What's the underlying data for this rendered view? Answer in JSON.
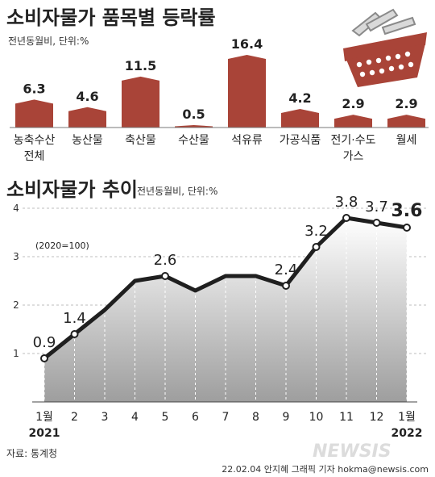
{
  "colors": {
    "bar": "#A94438",
    "bar_dark": "#8A3128",
    "line": "#1f1f1f",
    "grid": "#bdbdbd",
    "text": "#222222",
    "basket": "#A94438"
  },
  "top_section": {
    "title": "소비자물가 품목별 등락률",
    "unit_note": "전년동월비, 단위:%"
  },
  "bottom_section": {
    "title": "소비자물가 추이",
    "unit_note": "전년동월비, 단위:%",
    "base_note": "(2020=100)"
  },
  "chart_data": [
    {
      "type": "bar",
      "title": "소비자물가 품목별 등락률",
      "subtitle": "전년동월비, 단위:%",
      "categories": [
        "농축수산\n전체",
        "농산물",
        "축산물",
        "수산물",
        "석유류",
        "가공식품",
        "전기·수도\n가스",
        "월세"
      ],
      "category_lines": [
        [
          "농축수산",
          "전체"
        ],
        [
          "농산물"
        ],
        [
          "축산물"
        ],
        [
          "수산물"
        ],
        [
          "석유류"
        ],
        [
          "가공식품"
        ],
        [
          "전기·수도",
          "가스"
        ],
        [
          "월세"
        ]
      ],
      "values": [
        6.3,
        4.6,
        11.5,
        0.5,
        16.4,
        4.2,
        2.9,
        2.9
      ],
      "value_labels": [
        "6.3",
        "4.6",
        "11.5",
        "0.5",
        "16.4",
        "4.2",
        "2.9",
        "2.9"
      ],
      "ylim": [
        0,
        16.4
      ]
    },
    {
      "type": "line",
      "title": "소비자물가 추이",
      "subtitle": "전년동월비, 단위:%",
      "x_labels": [
        "1월",
        "2",
        "3",
        "4",
        "5",
        "6",
        "7",
        "8",
        "9",
        "10",
        "11",
        "12",
        "1월"
      ],
      "year_labels": [
        "2021",
        "2022"
      ],
      "values": [
        0.9,
        1.4,
        1.9,
        2.5,
        2.6,
        2.3,
        2.6,
        2.6,
        2.4,
        3.2,
        3.8,
        3.7,
        3.6
      ],
      "labeled_points": [
        {
          "index": 0,
          "label": "0.9"
        },
        {
          "index": 1,
          "label": "1.4"
        },
        {
          "index": 4,
          "label": "2.6"
        },
        {
          "index": 8,
          "label": "2.4"
        },
        {
          "index": 9,
          "label": "3.2"
        },
        {
          "index": 10,
          "label": "3.8"
        },
        {
          "index": 11,
          "label": "3.7"
        },
        {
          "index": 12,
          "label": "3.6"
        }
      ],
      "y_ticks": [
        "1",
        "2",
        "3",
        "4"
      ],
      "ylim": [
        0,
        4
      ],
      "grid": true,
      "annotation": "(2020=100)"
    }
  ],
  "footer": {
    "source": "자료: 통계청",
    "credit": "22.02.04  안지혜 그래픽 기자  hokma@newsis.com",
    "watermark": "NEWSIS"
  }
}
